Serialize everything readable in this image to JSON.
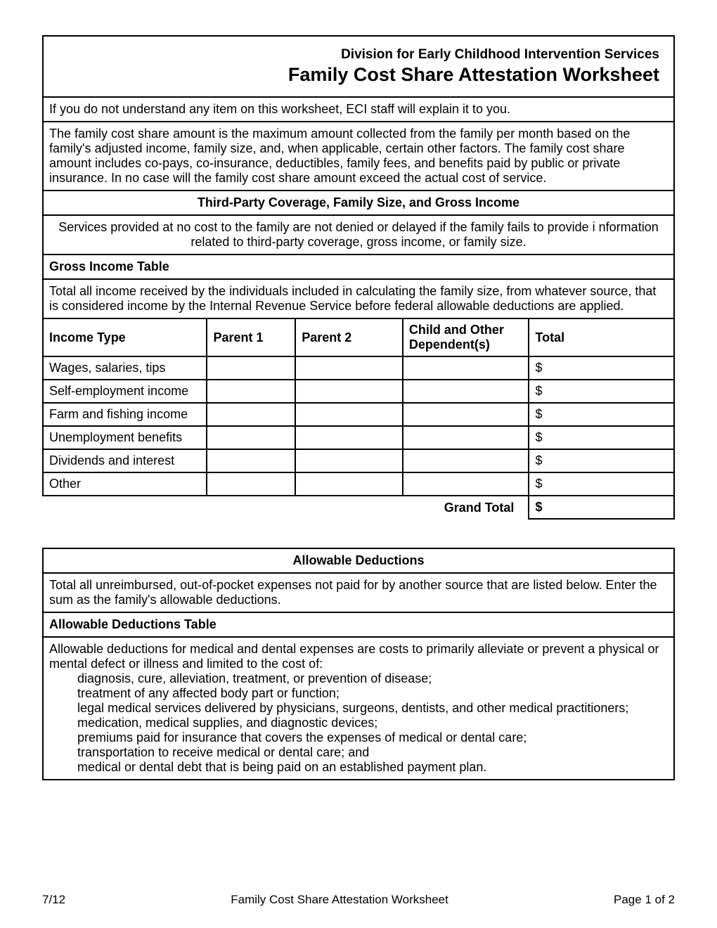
{
  "header": {
    "subtitle": "Division for Early Childhood Intervention Services",
    "title": "Family Cost Share Attestation Worksheet"
  },
  "intro": "If you do not understand any item on this worksheet, ECI staff will explain it to you.",
  "description": "The family cost share amount is the maximum amount collected from the family per month based on the family's adjusted income, family size, and, when applicable, certain other factors.  The family cost share amount includes co-pays, co-insurance, deductibles, family fees, and benefits paid by public or private insurance. In no case will the family cost share amount exceed the actual cost of service.",
  "section1": {
    "heading": "Third-Party Coverage, Family Size, and Gross Income",
    "note": "Services provided at no cost to the family are not denied or delayed if the family fails to provide i nformation related to third-party coverage, gross income, or family size.",
    "table_title": "Gross Income Table",
    "table_intro": "Total all income received by the individuals included in calculating the family size, from whatever source, that is considered income by the Internal Revenue Service before federal allowable deductions are applied.",
    "columns": [
      "Income Type",
      "Parent 1",
      "Parent 2",
      "Child and Other Dependent(s)",
      "Total"
    ],
    "rows": [
      {
        "type": "Wages, salaries, tips",
        "p1": "",
        "p2": "",
        "child": "",
        "total": "$"
      },
      {
        "type": "Self-employment income",
        "p1": "",
        "p2": "",
        "child": "",
        "total": "$"
      },
      {
        "type": "Farm and fishing income",
        "p1": "",
        "p2": "",
        "child": "",
        "total": "$"
      },
      {
        "type": "Unemployment benefits",
        "p1": "",
        "p2": "",
        "child": "",
        "total": "$"
      },
      {
        "type": "Dividends and interest",
        "p1": "",
        "p2": "",
        "child": "",
        "total": "$"
      },
      {
        "type": "Other",
        "p1": "",
        "p2": "",
        "child": "",
        "total": "$"
      }
    ],
    "grand_total_label": "Grand Total",
    "grand_total_value": "$"
  },
  "section2": {
    "heading": "Allowable Deductions",
    "intro": "Total all unreimbursed, out-of-pocket expenses not paid for by another source that are listed below. Enter the sum as the family's allowable deductions.",
    "table_title": "Allowable Deductions Table",
    "desc_line1": "Allowable deductions for medical and dental expenses are costs to primarily alleviate or prevent a physical or mental defect or illness and limited to the cost of:",
    "items": [
      "diagnosis, cure, alleviation, treatment, or prevention of disease;",
      "treatment of any affected body part or function;",
      "legal medical services delivered by physicians, surgeons, dentists, and other medical practitioners;",
      "medication, medical supplies, and diagnostic devices;",
      "premiums paid for insurance that covers the expenses of medical or dental care;",
      "transportation to receive medical or dental care; and",
      "medical or dental debt that is being paid on an established payment plan."
    ]
  },
  "footer": {
    "left": "7/12",
    "center": "Family Cost Share Attestation Worksheet",
    "right": "Page 1 of 2"
  }
}
